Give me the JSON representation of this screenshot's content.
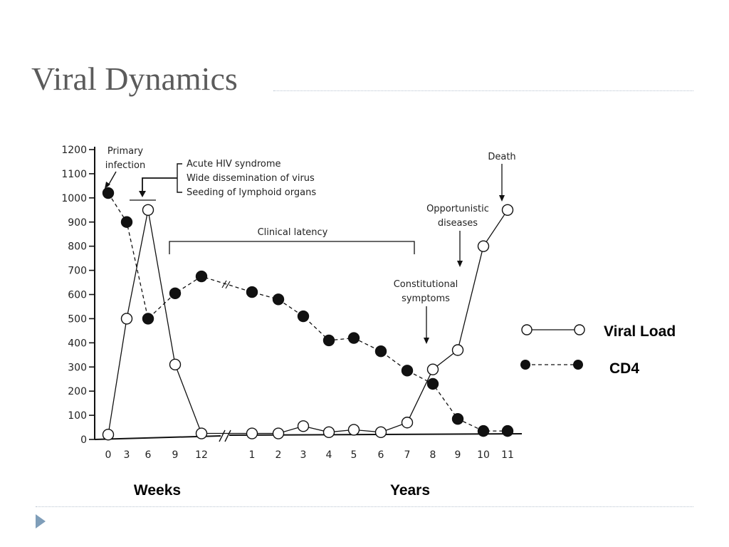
{
  "slide": {
    "title": "Viral Dynamics"
  },
  "colors": {
    "line": "#111111",
    "title": "#5b5b5b",
    "rule": "#b7c2cf",
    "bullet": "#7f9eb9"
  },
  "chart_data": {
    "type": "line",
    "title": "",
    "ylim": [
      0,
      1200
    ],
    "y_ticks": [
      "0",
      "100",
      "200",
      "300",
      "400",
      "500",
      "600",
      "700",
      "800",
      "900",
      "1000",
      "1100",
      "1200"
    ],
    "x_ticks": [
      "0",
      "3",
      "6",
      "9",
      "12",
      "1",
      "2",
      "3",
      "4",
      "5",
      "6",
      "7",
      "8",
      "9",
      "10",
      "11"
    ],
    "x_group_labels": {
      "weeks": "Weeks",
      "years": "Years"
    },
    "series": [
      {
        "name": "Viral Load",
        "marker": "open-circle",
        "line": "solid",
        "x": [
          "0",
          "3",
          "6",
          "9",
          "12",
          "1",
          "2",
          "3",
          "4",
          "5",
          "6",
          "7",
          "8",
          "9",
          "10",
          "11"
        ],
        "values": [
          20,
          500,
          950,
          310,
          25,
          25,
          25,
          55,
          30,
          40,
          30,
          70,
          290,
          370,
          800,
          950
        ]
      },
      {
        "name": "CD4",
        "marker": "filled-circle",
        "line": "dashed",
        "x": [
          "0",
          "3",
          "6",
          "9",
          "12",
          "1",
          "2",
          "3",
          "4",
          "5",
          "6",
          "7",
          "8",
          "9",
          "10",
          "11"
        ],
        "values": [
          1020,
          900,
          500,
          605,
          675,
          610,
          580,
          510,
          410,
          420,
          365,
          285,
          230,
          85,
          35,
          35
        ]
      }
    ],
    "annotations": {
      "primary_infection": [
        "Primary",
        "infection"
      ],
      "acute_phase": [
        "Acute HIV syndrome",
        "Wide dissemination of virus",
        "Seeding of lymphoid organs"
      ],
      "clinical_latency": "Clinical latency",
      "constitutional": [
        "Constitutional",
        "symptoms"
      ],
      "opportunistic": [
        "Opportunistic",
        "diseases"
      ],
      "death": "Death"
    },
    "legend": {
      "position": "right",
      "items": [
        {
          "label": "Viral Load",
          "marker": "open-circle",
          "line": "solid"
        },
        {
          "label": "CD4",
          "marker": "filled-circle",
          "line": "dashed"
        }
      ]
    }
  }
}
